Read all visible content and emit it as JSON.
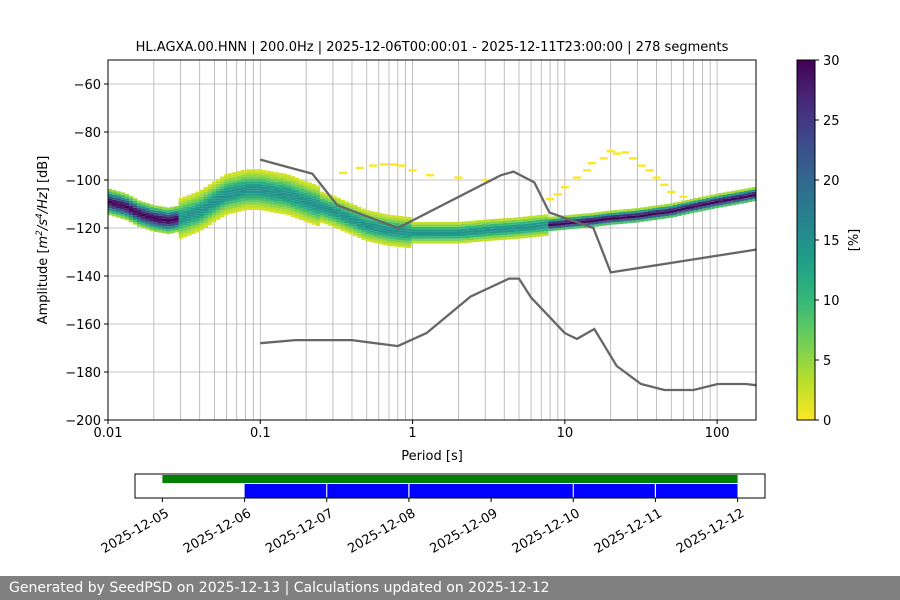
{
  "footer": {
    "text": "Generated by SeedPSD on 2025-12-13 | Calculations updated on 2025-12-12"
  },
  "chart_data": [
    {
      "type": "heatmap",
      "title": "HL.AGXA.00.HNN | 200.0Hz | 2025-12-06T00:00:01 - 2025-12-11T23:00:00 | 278 segments",
      "xlabel": "Period [s]",
      "ylabel": "Amplitude [m^2/s^4/Hz] [dB]",
      "xscale": "log",
      "xlim": [
        0.01,
        180
      ],
      "ylim": [
        -200,
        -50
      ],
      "grid": true,
      "x_ticks": [
        0.01,
        0.1,
        1,
        10,
        100
      ],
      "x_tick_labels": [
        "0.01",
        "0.1",
        "1",
        "10",
        "100"
      ],
      "y_ticks": [
        -200,
        -180,
        -160,
        -140,
        -120,
        -100,
        -80,
        -60
      ],
      "y_tick_labels": [
        "−200",
        "−180",
        "−160",
        "−140",
        "−120",
        "−100",
        "−80",
        "−60"
      ],
      "colorbar": {
        "label": "[%]",
        "range": [
          0,
          30
        ],
        "ticks": [
          0,
          5,
          10,
          15,
          20,
          25,
          30
        ],
        "tick_labels": [
          "0",
          "5",
          "10",
          "15",
          "20",
          "25",
          "30"
        ],
        "colormap": [
          "#fde725",
          "#b5de2b",
          "#6ece58",
          "#35b779",
          "#1f9e89",
          "#26828e",
          "#31688e",
          "#3e4989",
          "#482878",
          "#440154"
        ]
      },
      "psd_mode": {
        "period": [
          0.01,
          0.013,
          0.016,
          0.02,
          0.025,
          0.03,
          0.04,
          0.05,
          0.06,
          0.07,
          0.08,
          0.1,
          0.12,
          0.15,
          0.2,
          0.3,
          0.5,
          0.7,
          1.0,
          1.5,
          2,
          3,
          5,
          7,
          10,
          15,
          20,
          30,
          50,
          70,
          100,
          150,
          180
        ],
        "db": [
          -109,
          -111,
          -114,
          -116,
          -117,
          -116,
          -113,
          -109,
          -106,
          -105,
          -104,
          -104,
          -105,
          -106,
          -109,
          -113,
          -119,
          -121,
          -122,
          -122,
          -122,
          -121,
          -120,
          -119,
          -118,
          -117,
          -116,
          -115,
          -113,
          -111,
          -109,
          -107,
          -106
        ]
      },
      "noise_models": [
        {
          "period": [
            0.1,
            0.17,
            0.22,
            0.4,
            0.8,
            1.24,
            2.4,
            4.3,
            5.0,
            6.0,
            10.0,
            12.0,
            15.6,
            21.9,
            31.6,
            45.0,
            70.0,
            101.0,
            154.0,
            180.0
          ],
          "db": [
            -168,
            -166.7,
            -166.7,
            -166.7,
            -169.2,
            -163.7,
            -148.6,
            -141.1,
            -141.1,
            -149.0,
            -163.8,
            -166.2,
            -162.1,
            -177.5,
            -185.0,
            -187.5,
            -187.5,
            -185.0,
            -185.0,
            -185.5
          ]
        },
        {
          "period": [
            0.1,
            0.22,
            0.32,
            0.8,
            3.8,
            4.6,
            6.3,
            7.9,
            15.4,
            20.0,
            180.0
          ],
          "db": [
            -91.5,
            -97.4,
            -110.5,
            -120.0,
            -98.0,
            -96.5,
            -101.0,
            -113.5,
            -120.0,
            -138.5,
            -129.0
          ]
        }
      ],
      "outlier_cells": [
        [
          0.55,
          -94
        ],
        [
          0.65,
          -93.5
        ],
        [
          0.75,
          -93.5
        ],
        [
          0.85,
          -94
        ],
        [
          0.45,
          -95
        ],
        [
          1.0,
          -96
        ],
        [
          0.35,
          -97
        ],
        [
          1.3,
          -98
        ],
        [
          2.0,
          -99
        ],
        [
          3.0,
          -100
        ],
        [
          20,
          -88
        ],
        [
          22,
          -89
        ],
        [
          25,
          -88.5
        ],
        [
          18,
          -91
        ],
        [
          28,
          -91
        ],
        [
          15,
          -93
        ],
        [
          32,
          -94
        ],
        [
          14,
          -96
        ],
        [
          36,
          -96
        ],
        [
          12,
          -99
        ],
        [
          40,
          -99
        ],
        [
          10,
          -103
        ],
        [
          45,
          -102
        ],
        [
          9,
          -106
        ],
        [
          50,
          -105
        ],
        [
          8,
          -108
        ],
        [
          60,
          -107
        ]
      ]
    },
    {
      "type": "bar",
      "subtype": "timeline",
      "x_ticks": [
        "2025-12-05",
        "2025-12-06",
        "2025-12-07",
        "2025-12-08",
        "2025-12-09",
        "2025-12-10",
        "2025-12-11",
        "2025-12-12"
      ],
      "x_tick_labels": [
        "2025-12-05",
        "2025-12-06",
        "2025-12-07",
        "2025-12-08",
        "2025-12-09",
        "2025-12-10",
        "2025-12-11",
        "2025-12-12"
      ],
      "xlim": [
        "2025-12-04T16:00",
        "2025-12-12T08:00"
      ],
      "series": [
        {
          "color": "#008000",
          "segments": [
            [
              "2025-12-05T00:00",
              "2025-12-12T00:00"
            ]
          ]
        },
        {
          "color": "#0000ff",
          "segments": [
            [
              "2025-12-06T00:00",
              "2025-12-06T23:50"
            ],
            [
              "2025-12-07T00:10",
              "2025-12-07T23:50"
            ],
            [
              "2025-12-08T00:10",
              "2025-12-09T23:50"
            ],
            [
              "2025-12-10T00:10",
              "2025-12-10T23:50"
            ],
            [
              "2025-12-11T00:10",
              "2025-12-11T23:59"
            ]
          ]
        }
      ]
    }
  ]
}
